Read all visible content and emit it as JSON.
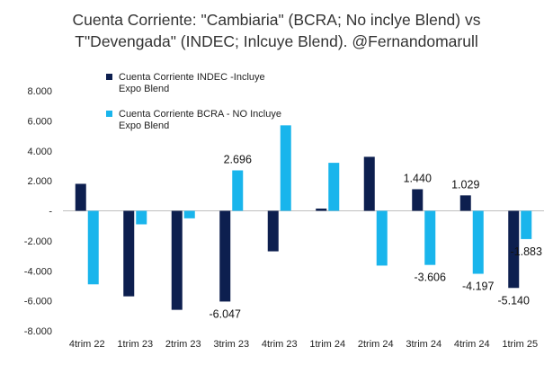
{
  "chart_data": {
    "type": "bar",
    "title_lines": [
      "Cuenta Corriente: \"Cambiaria\" (BCRA; No inclye Blend) vs",
      "T\"Devengada\" (INDEC; Inlcuye Blend). @Fernandomarull"
    ],
    "categories": [
      "4trim 22",
      "1trim 23",
      "2trim 23",
      "3trim 23",
      "4trim 23",
      "1trim 24",
      "2trim 24",
      "3trim 24",
      "4trim 24",
      "1trim 25"
    ],
    "series": [
      {
        "name": "Cuenta Corriente INDEC -Incluye Expo Blend",
        "name_lines": [
          "Cuenta Corriente INDEC -Incluye",
          "Expo Blend"
        ],
        "color": "#0d1f4f",
        "values": [
          1800,
          -5700,
          -6600,
          -6047,
          -2700,
          150,
          3600,
          1440,
          1029,
          -5140
        ]
      },
      {
        "name": "Cuenta Corriente BCRA - NO Incluye Expo Blend",
        "name_lines": [
          "Cuenta Corriente BCRA - NO Incluye",
          "Expo Blend"
        ],
        "color": "#19b5ec",
        "values": [
          -4900,
          -900,
          -500,
          2696,
          5700,
          3200,
          -3650,
          -3606,
          -4197,
          -1883
        ]
      }
    ],
    "data_labels": [
      {
        "series": 0,
        "index": 3,
        "text": "-6.047"
      },
      {
        "series": 1,
        "index": 3,
        "text": "2.696"
      },
      {
        "series": 0,
        "index": 7,
        "text": "1.440"
      },
      {
        "series": 1,
        "index": 7,
        "text": "-3.606"
      },
      {
        "series": 0,
        "index": 8,
        "text": "1.029"
      },
      {
        "series": 1,
        "index": 8,
        "text": "-4.197"
      },
      {
        "series": 0,
        "index": 9,
        "text": "-5.140"
      },
      {
        "series": 1,
        "index": 9,
        "text": "-1.883"
      }
    ],
    "ylim": [
      -8000,
      8000
    ],
    "yticks": [
      -8000,
      -6000,
      -4000,
      -2000,
      0,
      2000,
      4000,
      6000,
      8000
    ],
    "ytick_labels": [
      "-8.000",
      "-6.000",
      "-4.000",
      "-2.000",
      "-",
      "2.000",
      "4.000",
      "6.000",
      "8.000"
    ],
    "grid": false,
    "legend_position": "top-left"
  }
}
